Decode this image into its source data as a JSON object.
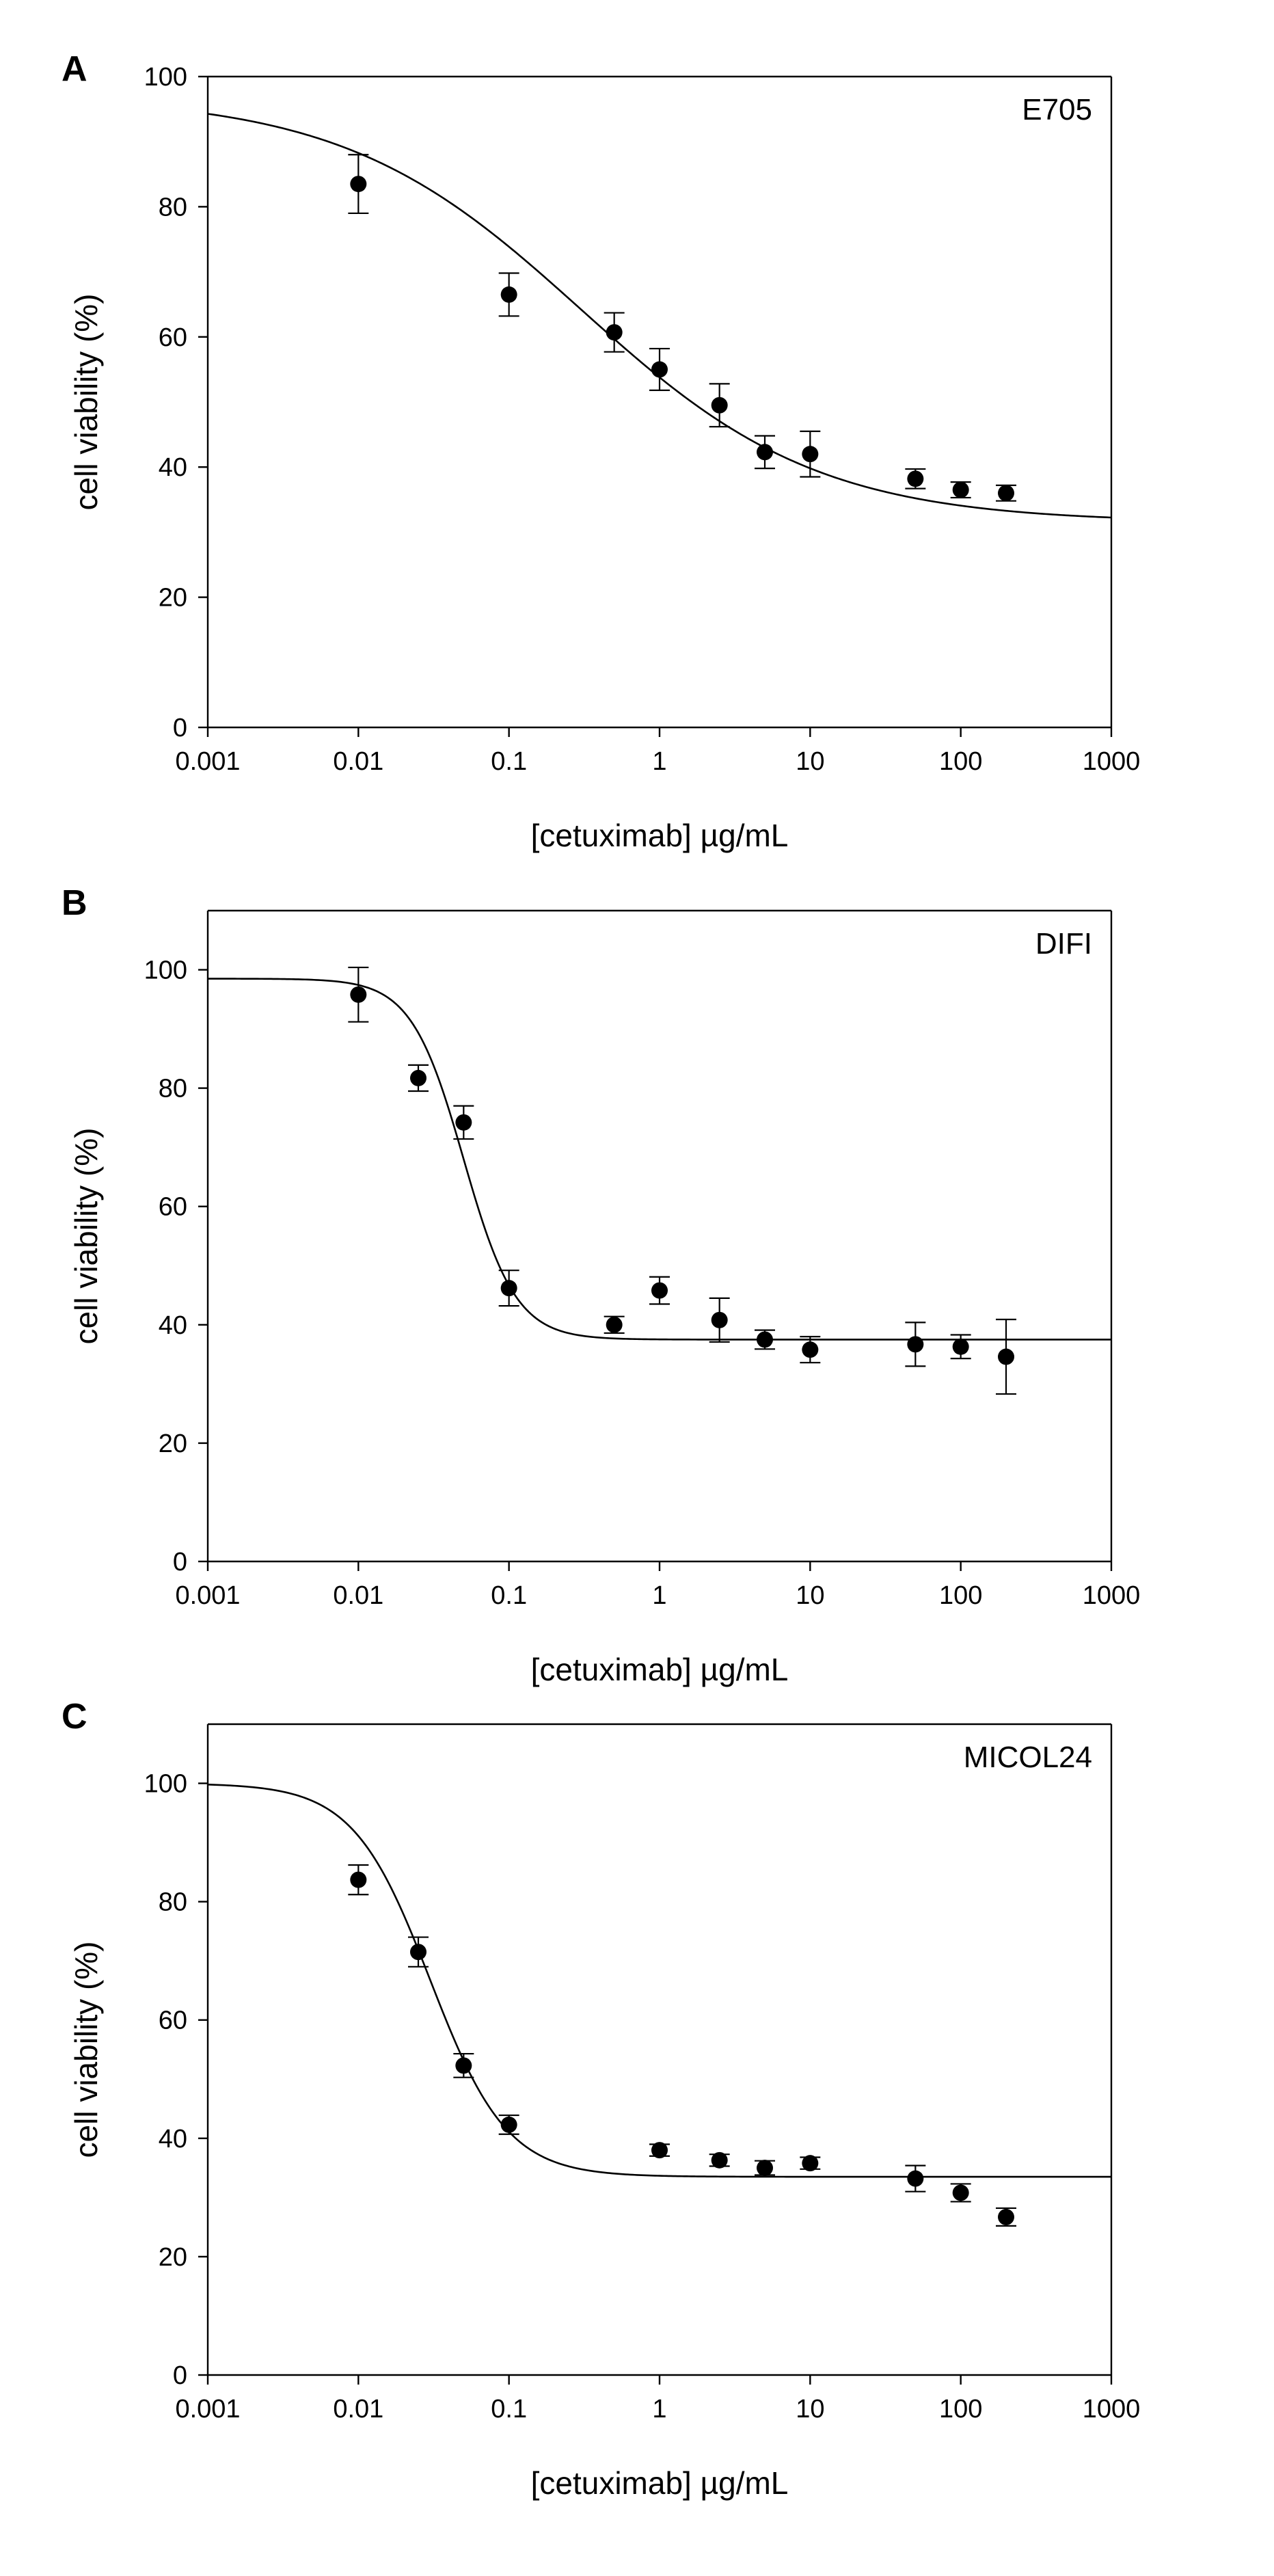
{
  "chart_data": [
    {
      "type": "scatter",
      "panel_label": "A",
      "cell_line": "E705",
      "xlabel": "[cetuximab] µg/mL",
      "ylabel": "cell viability (%)",
      "xscale": "log",
      "xlim": [
        0.001,
        1000
      ],
      "ylim": [
        0,
        100
      ],
      "xticks": [
        0.001,
        0.01,
        0.1,
        1,
        10,
        100,
        1000
      ],
      "xtick_labels": [
        "0.001",
        "0.01",
        "0.1",
        "1",
        "10",
        "100",
        "1000"
      ],
      "yticks": [
        0,
        20,
        40,
        60,
        80,
        100
      ],
      "ytick_labels": [
        "0",
        "20",
        "40",
        "60",
        "80",
        "100"
      ],
      "legend": "cell line name at top-right",
      "series": [
        {
          "name": "E705",
          "x": [
            0.01,
            0.1,
            0.5,
            1,
            2.5,
            5,
            10,
            50,
            100,
            200
          ],
          "y": [
            83.5,
            66.5,
            60.7,
            55.0,
            49.5,
            42.3,
            42.0,
            38.2,
            36.5,
            36.0
          ],
          "err": [
            4.5,
            3.3,
            3.0,
            3.2,
            3.3,
            2.5,
            3.5,
            1.5,
            1.2,
            1.2
          ]
        }
      ],
      "fit": {
        "model": "4PL",
        "top": 97,
        "bottom": 31.5,
        "ec50": 0.3,
        "hill": 0.55
      }
    },
    {
      "type": "scatter",
      "panel_label": "B",
      "cell_line": "DIFI",
      "xlabel": "[cetuximab] µg/mL",
      "ylabel": "cell viability (%)",
      "xscale": "log",
      "xlim": [
        0.001,
        1000
      ],
      "ylim": [
        0,
        110
      ],
      "xticks": [
        0.001,
        0.01,
        0.1,
        1,
        10,
        100,
        1000
      ],
      "xtick_labels": [
        "0.001",
        "0.01",
        "0.1",
        "1",
        "10",
        "100",
        "1000"
      ],
      "yticks": [
        0,
        20,
        40,
        60,
        80,
        100
      ],
      "ytick_labels": [
        "0",
        "20",
        "40",
        "60",
        "80",
        "100"
      ],
      "legend": "cell line name at top-right",
      "series": [
        {
          "name": "DIFI",
          "x": [
            0.01,
            0.025,
            0.05,
            0.1,
            0.5,
            1,
            2.5,
            5,
            10,
            50,
            100,
            200
          ],
          "y": [
            95.8,
            81.7,
            74.2,
            46.2,
            40.0,
            45.8,
            40.8,
            37.5,
            35.8,
            36.7,
            36.3,
            34.6
          ],
          "err": [
            4.6,
            2.2,
            2.8,
            3.0,
            1.4,
            2.3,
            3.7,
            1.6,
            2.2,
            3.7,
            2.0,
            6.3
          ]
        }
      ],
      "fit": {
        "model": "4PL",
        "top": 98.5,
        "bottom": 37.5,
        "ec50": 0.05,
        "hill": 2.5
      }
    },
    {
      "type": "scatter",
      "panel_label": "C",
      "cell_line": "MICOL24",
      "xlabel": "[cetuximab] µg/mL",
      "ylabel": "cell viability (%)",
      "xscale": "log",
      "xlim": [
        0.001,
        1000
      ],
      "ylim": [
        0,
        110
      ],
      "xticks": [
        0.001,
        0.01,
        0.1,
        1,
        10,
        100,
        1000
      ],
      "xtick_labels": [
        "0.001",
        "0.01",
        "0.1",
        "1",
        "10",
        "100",
        "1000"
      ],
      "yticks": [
        0,
        20,
        40,
        60,
        80,
        100
      ],
      "ytick_labels": [
        "0",
        "20",
        "40",
        "60",
        "80",
        "100"
      ],
      "legend": "cell line name at top-right",
      "series": [
        {
          "name": "MICOL24",
          "x": [
            0.01,
            0.025,
            0.05,
            0.1,
            1,
            2.5,
            5,
            10,
            50,
            100,
            200
          ],
          "y": [
            83.7,
            71.5,
            52.3,
            42.3,
            38.0,
            36.3,
            35.0,
            35.8,
            33.2,
            30.8,
            26.7
          ],
          "err": [
            2.5,
            2.5,
            2.0,
            1.6,
            1.0,
            1.0,
            1.2,
            1.0,
            2.2,
            1.5,
            1.5
          ]
        }
      ],
      "fit": {
        "model": "4PL",
        "top": 100,
        "bottom": 33.5,
        "ec50": 0.03,
        "hill": 1.7
      }
    }
  ]
}
